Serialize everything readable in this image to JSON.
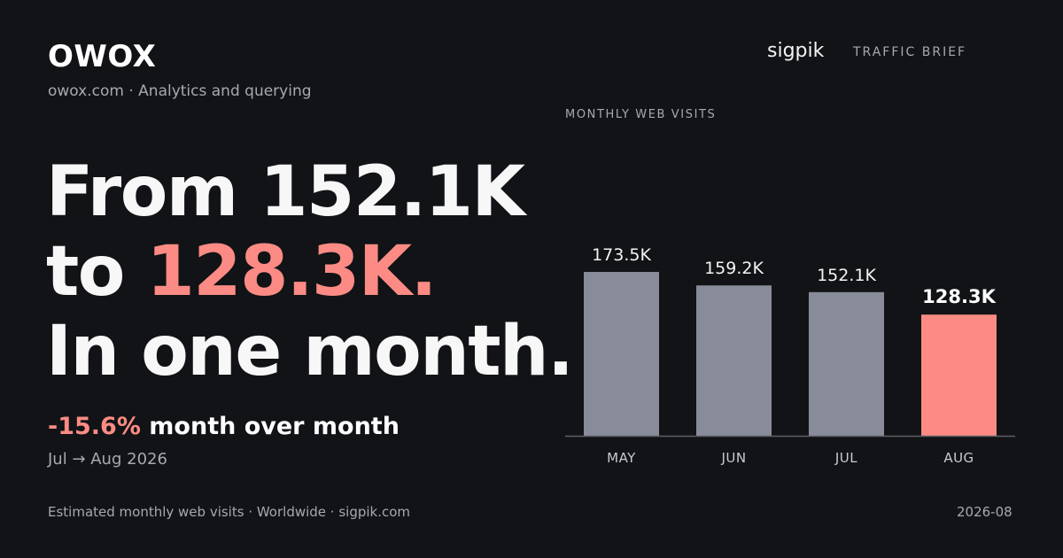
{
  "brand": {
    "name": "OWOX",
    "subtitle": "owox.com · Analytics and querying"
  },
  "header": {
    "publisher": "sigpik",
    "section": "TRAFFIC BRIEF"
  },
  "headline": {
    "line1": "From 152.1K",
    "line2_prefix": "to ",
    "line2_accent": "128.3K.",
    "line3": "In one month."
  },
  "change": {
    "percent": "-15.6%",
    "text": " month over month",
    "period": "Jul → Aug 2026"
  },
  "footer": {
    "source": "Estimated monthly web visits · Worldwide · sigpik.com",
    "date": "2026-08"
  },
  "colors": {
    "background": "#111316",
    "bar_default": "#888c98",
    "bar_highlight": "#fb8b84",
    "accent": "#fb8b84",
    "axis": "#5c5f66"
  },
  "chart_data": {
    "type": "bar",
    "title": "MONTHLY WEB VISITS",
    "categories": [
      "MAY",
      "JUN",
      "JUL",
      "AUG"
    ],
    "values": [
      173500,
      159200,
      152100,
      128300
    ],
    "value_labels": [
      "173.5K",
      "159.2K",
      "152.1K",
      "128.3K"
    ],
    "highlight_index": 3,
    "ylim": [
      0,
      200000
    ],
    "grid": false,
    "legend": "none"
  }
}
